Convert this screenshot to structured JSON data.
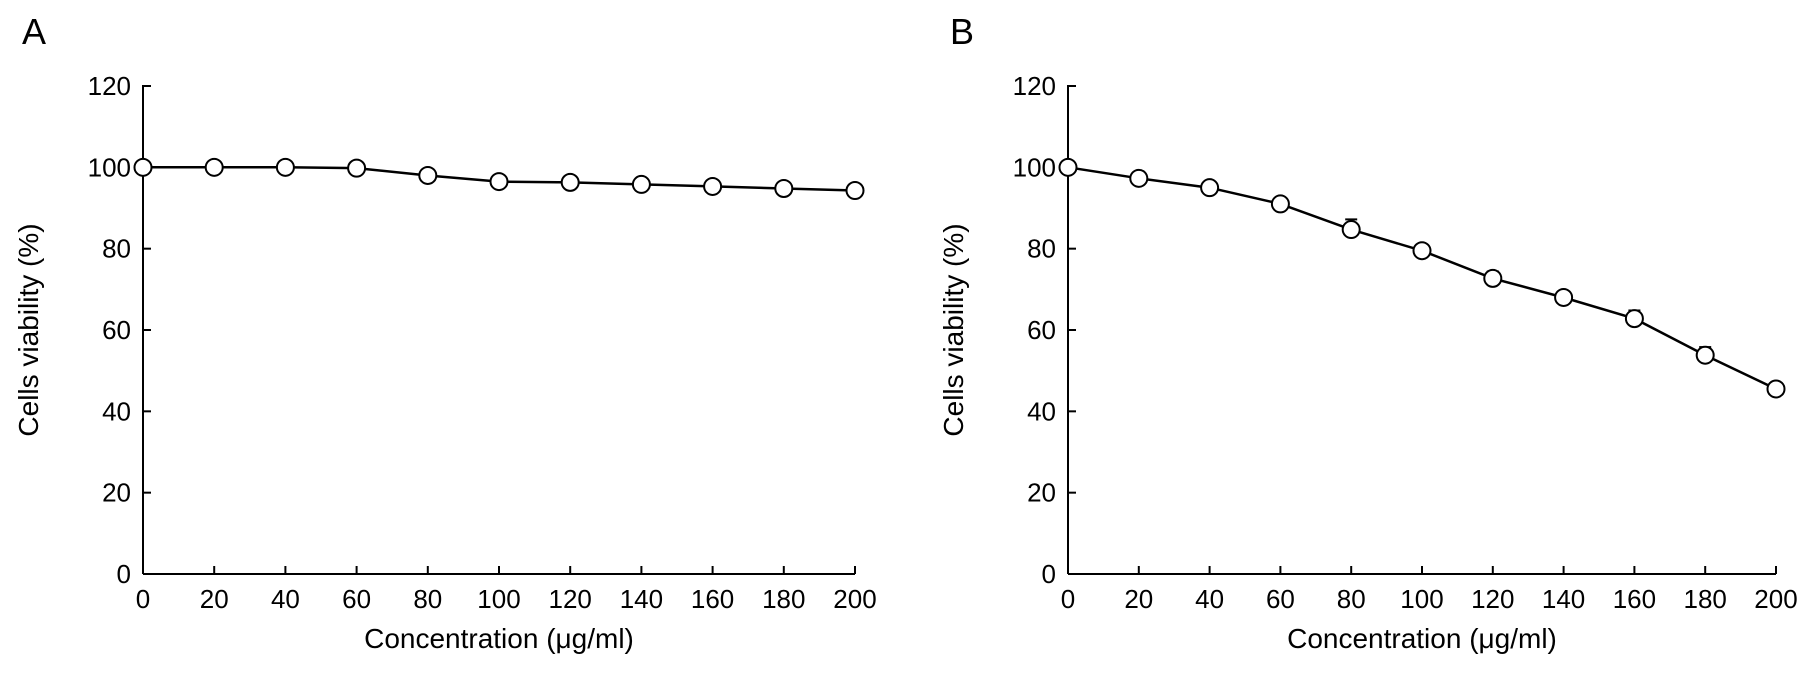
{
  "chart_data": [
    {
      "panel": "A",
      "type": "line",
      "xlabel": "Concentration (μg/ml)",
      "ylabel": "Cells viability (%)",
      "xlim": [
        0,
        200
      ],
      "ylim": [
        0,
        120
      ],
      "xticks": [
        0,
        20,
        40,
        60,
        80,
        100,
        120,
        140,
        160,
        180,
        200
      ],
      "yticks": [
        0,
        20,
        40,
        60,
        80,
        100,
        120
      ],
      "grid": false,
      "series": [
        {
          "x": [
            0,
            20,
            40,
            60,
            80,
            100,
            120,
            140,
            160,
            180,
            200
          ],
          "y": [
            100,
            100,
            100,
            99.8,
            98,
            96.5,
            96.3,
            95.8,
            95.3,
            94.8,
            94.3
          ],
          "error": [
            0,
            0,
            0,
            0,
            0,
            0,
            0,
            0,
            0,
            0,
            0
          ]
        }
      ]
    },
    {
      "panel": "B",
      "type": "line",
      "xlabel": "Concentration (μg/ml)",
      "ylabel": "Cells viability (%)",
      "xlim": [
        0,
        200
      ],
      "ylim": [
        0,
        120
      ],
      "xticks": [
        0,
        20,
        40,
        60,
        80,
        100,
        120,
        140,
        160,
        180,
        200
      ],
      "yticks": [
        0,
        20,
        40,
        60,
        80,
        100,
        120
      ],
      "grid": false,
      "series": [
        {
          "x": [
            0,
            20,
            40,
            60,
            80,
            100,
            120,
            140,
            160,
            180,
            200
          ],
          "y": [
            100,
            97.3,
            95,
            91,
            84.7,
            79.5,
            72.7,
            68,
            62.8,
            53.8,
            45.5
          ],
          "error": [
            0,
            0,
            1.2,
            1,
            2.5,
            1.5,
            1.7,
            1.2,
            2,
            2,
            0
          ]
        }
      ]
    }
  ]
}
